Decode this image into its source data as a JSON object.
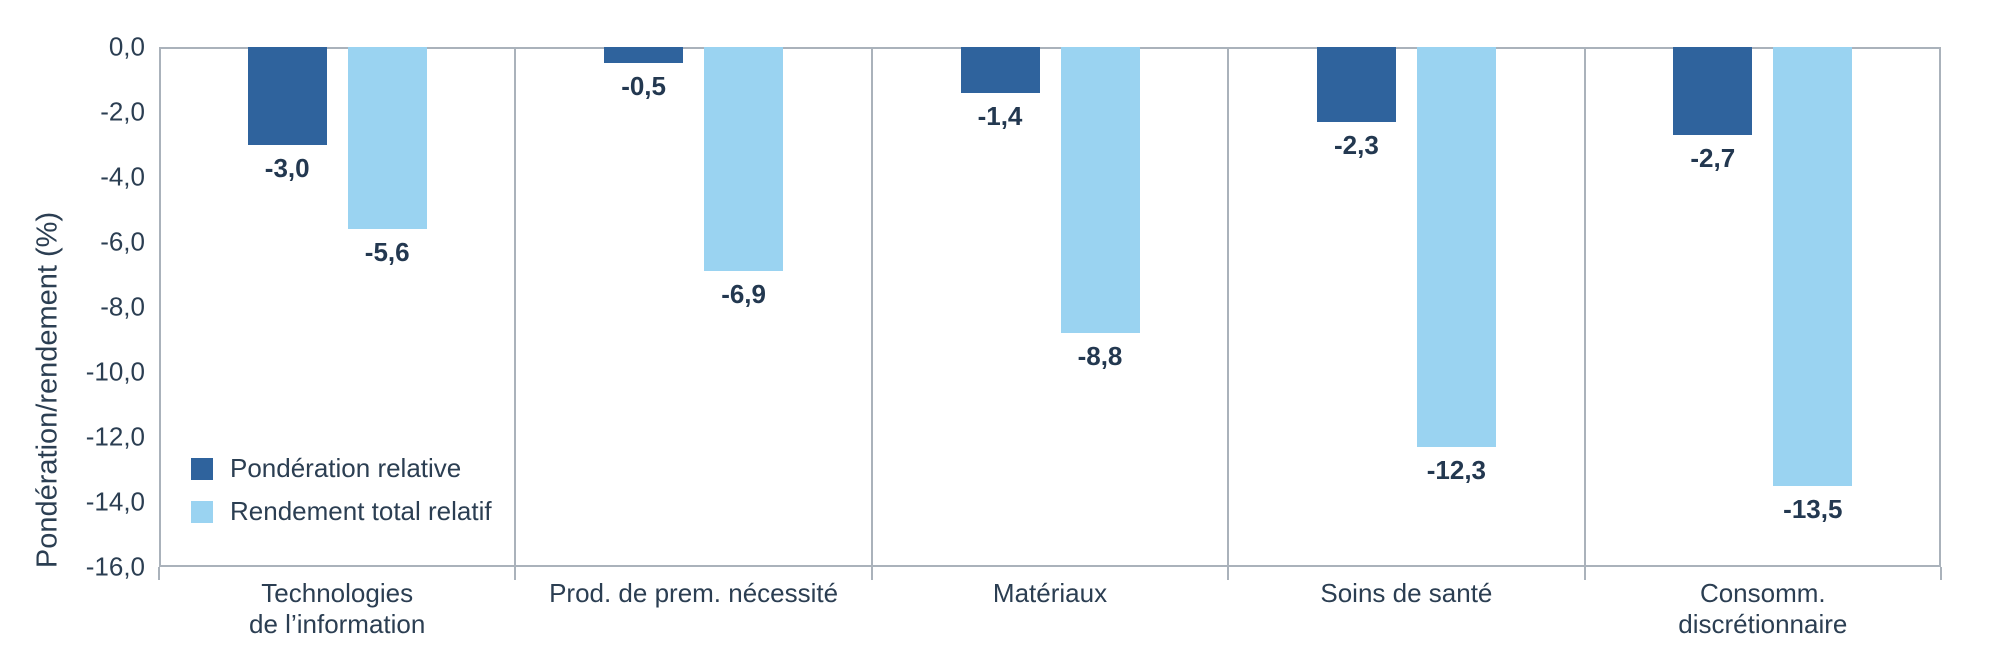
{
  "chart_data": {
    "type": "bar",
    "title": "",
    "ylabel": "Pondération/rendement (%)",
    "xlabel": "",
    "ylim": [
      -16,
      0
    ],
    "grid": false,
    "legend_position": "inside-bottom-left",
    "decimal_style": "comma",
    "categories": [
      "Technologies\nde l’information",
      "Prod. de prem. nécessité",
      "Matériaux",
      "Soins de santé",
      "Consomm.\ndiscrétionnaire"
    ],
    "ytick_labels": [
      "0,0",
      "-2,0",
      "-4,0",
      "-6,0",
      "-8,0",
      "-10,0",
      "-12,0",
      "-14,0",
      "-16,0"
    ],
    "series": [
      {
        "name": "Pondération relative",
        "color": "#2f639d",
        "values": [
          -3.0,
          -0.5,
          -1.4,
          -2.3,
          -2.7
        ],
        "value_labels": [
          "-3,0",
          "-0,5",
          "-1,4",
          "-2,3",
          "-2,7"
        ]
      },
      {
        "name": "Rendement total relatif",
        "color": "#9ad3f1",
        "values": [
          -5.6,
          -6.9,
          -8.8,
          -12.3,
          -13.5
        ],
        "value_labels": [
          "-5,6",
          "-6,9",
          "-8,8",
          "-12,3",
          "-13,5"
        ]
      }
    ],
    "colors": {
      "axis_line": "#aab2bb",
      "text": "#2b3e52",
      "value_label_text": "#233850",
      "background": "#ffffff"
    }
  }
}
